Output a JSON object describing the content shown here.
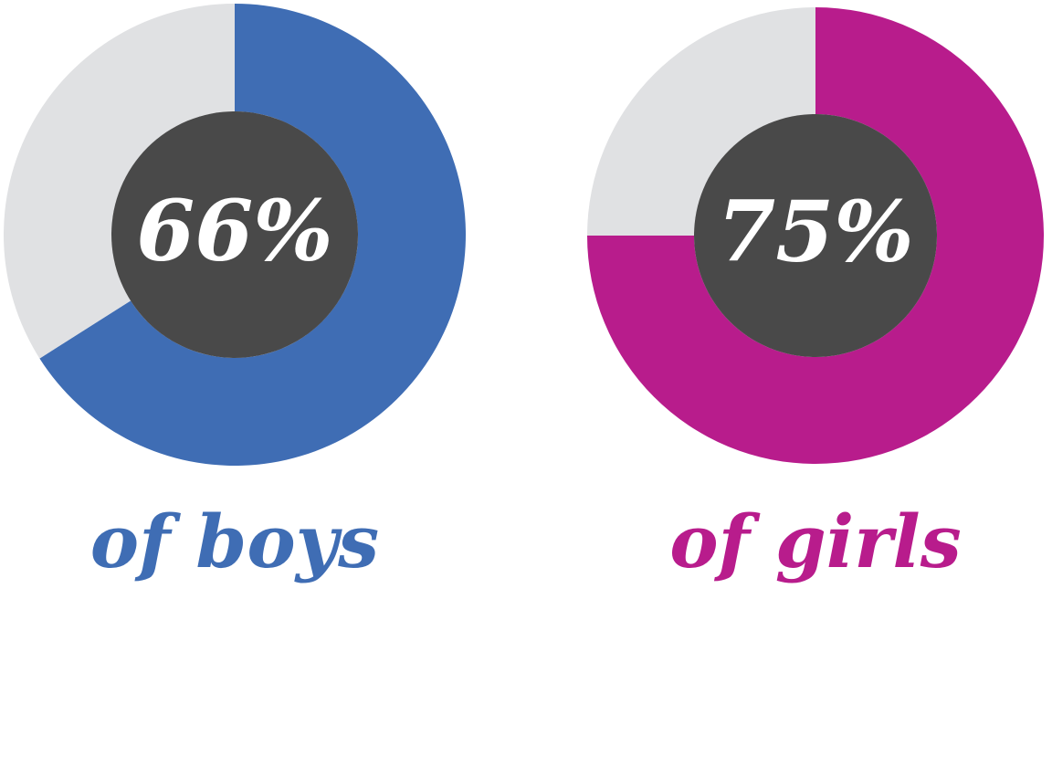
{
  "chart_data": [
    {
      "type": "donut",
      "values": [
        66,
        34
      ],
      "value_labels": [
        "66%",
        null
      ],
      "colors": [
        "#3f6db4",
        "#e0e1e3"
      ],
      "caption": "of boys"
    },
    {
      "type": "donut",
      "values": [
        75,
        25
      ],
      "value_labels": [
        "75%",
        null
      ],
      "colors": [
        "#b81c8c",
        "#e0e1e3"
      ],
      "caption": "of girls"
    }
  ]
}
